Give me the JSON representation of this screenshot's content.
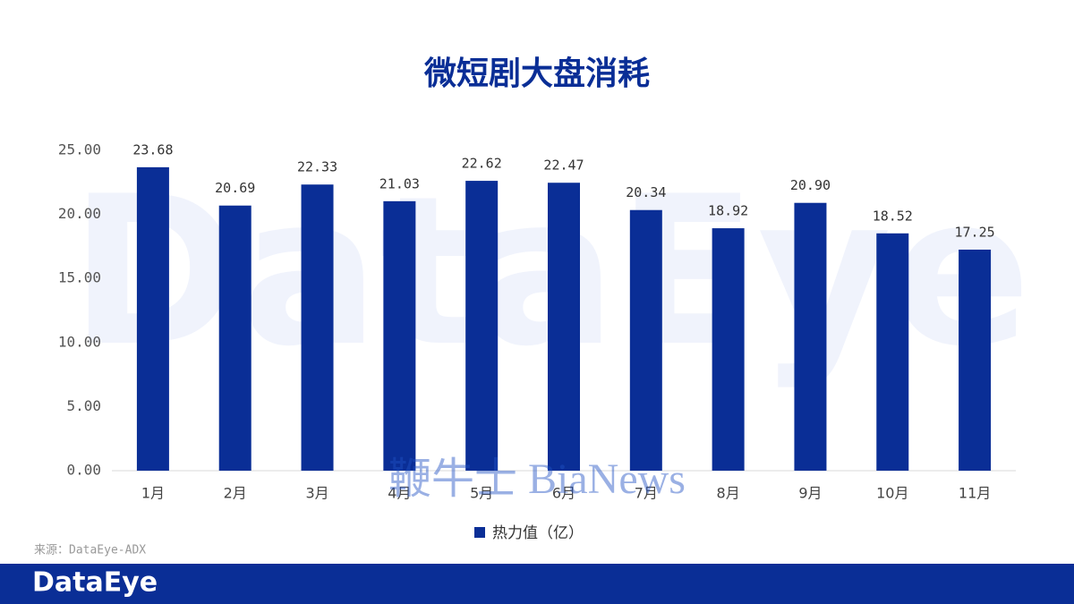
{
  "chart_data": {
    "type": "bar",
    "title": "微短剧大盘消耗",
    "categories": [
      "1月",
      "2月",
      "3月",
      "4月",
      "5月",
      "6月",
      "7月",
      "8月",
      "9月",
      "10月",
      "11月"
    ],
    "series": [
      {
        "name": "热力值（亿）",
        "color": "#0a2e96",
        "values": [
          23.68,
          20.69,
          22.33,
          21.03,
          22.62,
          22.47,
          20.34,
          18.92,
          20.9,
          18.52,
          17.25
        ],
        "value_labels": [
          "23.68",
          "20.69",
          "22.33",
          "21.03",
          "22.62",
          "22.47",
          "20.34",
          "18.92",
          "20.90",
          "18.52",
          "17.25"
        ]
      }
    ],
    "ylim": [
      0,
      25
    ],
    "yticks": [
      {
        "value": 0,
        "label": "0.00"
      },
      {
        "value": 5,
        "label": "5.00"
      },
      {
        "value": 10,
        "label": "10.00"
      },
      {
        "value": 15,
        "label": "15.00"
      },
      {
        "value": 20,
        "label": "20.00"
      },
      {
        "value": 25,
        "label": "25.00"
      }
    ],
    "grid": false,
    "legend": "bottom",
    "source": "来源：DataEye-ADX",
    "watermarks": [
      "DataEye",
      "鞭牛士 BiaNews"
    ],
    "footer_logo": "DataEye"
  }
}
